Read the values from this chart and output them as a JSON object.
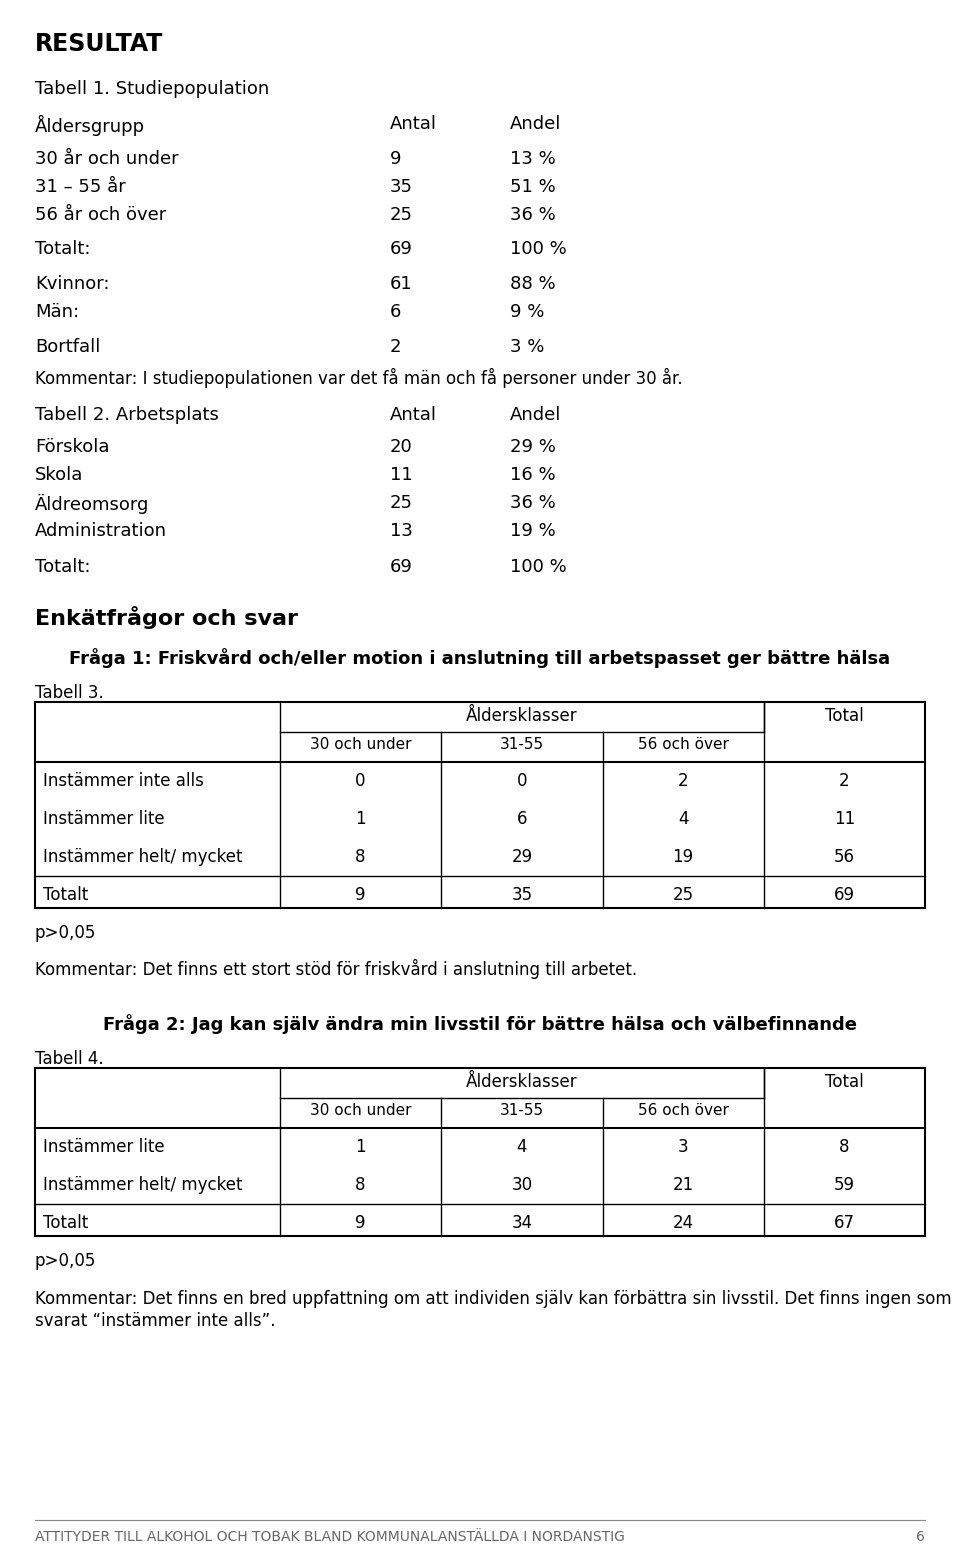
{
  "bg_color": "#ffffff",
  "page_title": "RESULTAT",
  "tabell1_title": "Tabell 1. Studiepopulation",
  "tabell1_col1": "Åldersgrupp",
  "tabell1_col2": "Antal",
  "tabell1_col3": "Andel",
  "tabell1_rows": [
    [
      "30 år och under",
      "9",
      "13 %"
    ],
    [
      "31 – 55 år",
      "35",
      "51 %"
    ],
    [
      "56 år och över",
      "25",
      "36 %"
    ]
  ],
  "tabell1_total": [
    "Totalt:",
    "69",
    "100 %"
  ],
  "tabell1_extra": [
    [
      "Kvinnor:",
      "61",
      "88 %"
    ],
    [
      "Män:",
      "6",
      "9 %"
    ],
    [
      "Bortfall",
      "2",
      "3 %"
    ]
  ],
  "tabell1_comment": "Kommentar: I studiepopulationen var det få män och få personer under 30 år.",
  "tabell2_title": "Tabell 2. Arbetsplats",
  "tabell2_col2": "Antal",
  "tabell2_col3": "Andel",
  "tabell2_rows": [
    [
      "Förskola",
      "20",
      "29 %"
    ],
    [
      "Skola",
      "11",
      "16 %"
    ],
    [
      "Äldreomsorg",
      "25",
      "36 %"
    ],
    [
      "Administration",
      "13",
      "19 %"
    ]
  ],
  "tabell2_total": [
    "Totalt:",
    "69",
    "100 %"
  ],
  "section_enkät": "Enkätfrågor och svar",
  "fraga1_title": "Fråga 1: Friskvård och/eller motion i anslutning till arbetspasset ger bättre hälsa",
  "tabell3_label": "Tabell 3.",
  "tabell3_header_span": "Åldersklasser",
  "tabell3_header_total": "Total",
  "tabell3_subheaders": [
    "30 och under",
    "31-55",
    "56 och över"
  ],
  "tabell3_rows": [
    [
      "Instämmer inte alls",
      "0",
      "0",
      "2",
      "2"
    ],
    [
      "Instämmer lite",
      "1",
      "6",
      "4",
      "11"
    ],
    [
      "Instämmer helt/ mycket",
      "8",
      "29",
      "19",
      "56"
    ]
  ],
  "tabell3_total": [
    "Totalt",
    "9",
    "35",
    "25",
    "69"
  ],
  "tabell3_pvalue": "p>0,05",
  "tabell3_comment": "Kommentar: Det finns ett stort stöd för friskvård i anslutning till arbetet.",
  "fraga2_title": "Fråga 2: Jag kan själv ändra min livsstil för bättre hälsa och välbefinnande",
  "tabell4_label": "Tabell 4.",
  "tabell4_header_span": "Åldersklasser",
  "tabell4_header_total": "Total",
  "tabell4_subheaders": [
    "30 och under",
    "31-55",
    "56 och över"
  ],
  "tabell4_rows": [
    [
      "Instämmer lite",
      "1",
      "4",
      "3",
      "8"
    ],
    [
      "Instämmer helt/ mycket",
      "8",
      "30",
      "21",
      "59"
    ]
  ],
  "tabell4_total": [
    "Totalt",
    "9",
    "34",
    "24",
    "67"
  ],
  "tabell4_pvalue": "p>0,05",
  "tabell4_comment_line1": "Kommentar: Det finns en bred uppfattning om att individen själv kan förbättra sin livsstil. Det finns ingen som",
  "tabell4_comment_line2": "svarat “instämmer inte alls”.",
  "footer_text": "ATTITYDER TILL ALKOHOL OCH TOBAK BLAND KOMMUNALANSTÄLLDA I NORDANSTIG",
  "footer_page": "6"
}
